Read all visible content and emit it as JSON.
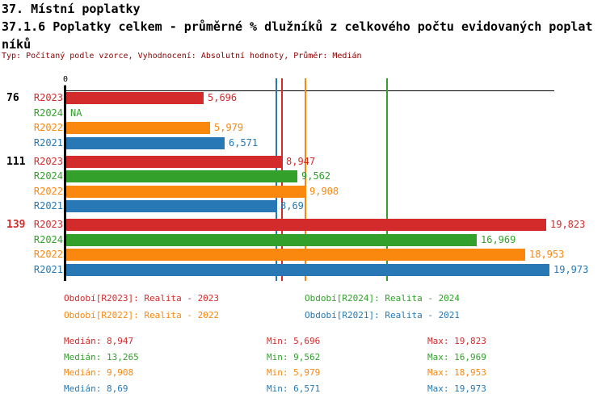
{
  "header": {
    "section_title": "37. Místní poplatky",
    "chart_title_lines": [
      "37.1.6 Poplatky celkem - průměrné % dlužníků z celkového počtu evidovaných poplat",
      "níků"
    ],
    "meta": "Typ: Počítaný podle vzorce, Vyhodnocení: Absolutní hodnoty, Průměr: Medián"
  },
  "colors": {
    "series": {
      "R2023": "#d32b2b",
      "R2024": "#33a02c",
      "R2022": "#fa870e",
      "R2021": "#2778b4"
    },
    "highlight_group": "#d32b2b",
    "group_label": "#000000",
    "meta_text": "#8b0000"
  },
  "chart_data": {
    "type": "bar",
    "orientation": "horizontal",
    "x_axis": {
      "zero_label": "0",
      "range": [
        0,
        20.1
      ],
      "grid": false
    },
    "series_labels": [
      "R2023",
      "R2024",
      "R2022",
      "R2021"
    ],
    "groups": [
      {
        "label": "76",
        "highlighted": false,
        "bars": [
          {
            "series": "R2023",
            "value": 5.696,
            "display": "5,696"
          },
          {
            "series": "R2024",
            "value": null,
            "display": "NA"
          },
          {
            "series": "R2022",
            "value": 5.979,
            "display": "5,979"
          },
          {
            "series": "R2021",
            "value": 6.571,
            "display": "6,571"
          }
        ]
      },
      {
        "label": "111",
        "highlighted": false,
        "bars": [
          {
            "series": "R2023",
            "value": 8.947,
            "display": "8,947"
          },
          {
            "series": "R2024",
            "value": 9.562,
            "display": "9,562"
          },
          {
            "series": "R2022",
            "value": 9.908,
            "display": "9,908"
          },
          {
            "series": "R2021",
            "value": 8.69,
            "display": "8,69"
          }
        ]
      },
      {
        "label": "139",
        "highlighted": true,
        "bars": [
          {
            "series": "R2023",
            "value": 19.823,
            "display": "19,823"
          },
          {
            "series": "R2024",
            "value": 16.969,
            "display": "16,969"
          },
          {
            "series": "R2022",
            "value": 18.953,
            "display": "18,953"
          },
          {
            "series": "R2021",
            "value": 19.973,
            "display": "19,973"
          }
        ]
      }
    ],
    "median_lines": [
      {
        "series": "R2021",
        "value": 8.69
      },
      {
        "series": "R2023",
        "value": 8.947
      },
      {
        "series": "R2022",
        "value": 9.908
      },
      {
        "series": "R2024",
        "value": 13.265
      }
    ]
  },
  "legend": {
    "items": [
      {
        "series": "R2023",
        "text": "Období[R2023]: Realita - 2023"
      },
      {
        "series": "R2024",
        "text": "Období[R2024]: Realita - 2024"
      },
      {
        "series": "R2022",
        "text": "Období[R2022]: Realita - 2022"
      },
      {
        "series": "R2021",
        "text": "Období[R2021]: Realita - 2021"
      }
    ]
  },
  "stats": {
    "labels": {
      "median": "Medián",
      "min": "Min",
      "max": "Max"
    },
    "rows": [
      {
        "series": "R2023",
        "median": "8,947",
        "min": "5,696",
        "max": "19,823"
      },
      {
        "series": "R2024",
        "median": "13,265",
        "min": "9,562",
        "max": "16,969"
      },
      {
        "series": "R2022",
        "median": "9,908",
        "min": "5,979",
        "max": "18,953"
      },
      {
        "series": "R2021",
        "median": "8,69",
        "min": "6,571",
        "max": "19,973"
      }
    ]
  }
}
